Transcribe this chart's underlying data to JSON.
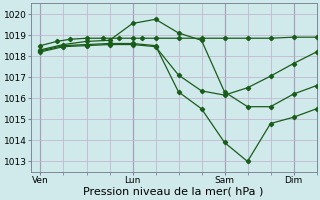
{
  "background_color": "#d0eaec",
  "grid_color": "#c0b0cc",
  "line_color": "#1a5c1a",
  "xlabel": "Pression niveau de la mer( hPa )",
  "xlabel_fontsize": 8,
  "ylim": [
    1012.5,
    1020.5
  ],
  "yticks": [
    1013,
    1014,
    1015,
    1016,
    1017,
    1018,
    1019,
    1020
  ],
  "xtick_labels": [
    "Ven",
    "Lun",
    "Sam",
    "Dim"
  ],
  "xtick_positions": [
    0,
    28,
    56,
    77
  ],
  "vline_positions": [
    0,
    28,
    56,
    77
  ],
  "xlim": [
    -3,
    84
  ],
  "series1_x": [
    0,
    5,
    9,
    14,
    19,
    24,
    28,
    31,
    35,
    42,
    49,
    56,
    63,
    70,
    77,
    84
  ],
  "series1_y": [
    1018.5,
    1018.7,
    1018.8,
    1018.85,
    1018.85,
    1018.85,
    1018.85,
    1018.85,
    1018.85,
    1018.85,
    1018.85,
    1018.85,
    1018.85,
    1018.85,
    1018.9,
    1018.9
  ],
  "series2_x": [
    0,
    7,
    14,
    21,
    28,
    35,
    42,
    49,
    56,
    63,
    70,
    77,
    84
  ],
  "series2_y": [
    1018.3,
    1018.55,
    1018.7,
    1018.75,
    1019.55,
    1019.75,
    1019.1,
    1018.75,
    1016.3,
    1015.6,
    1015.6,
    1016.2,
    1016.6
  ],
  "series3_x": [
    0,
    7,
    14,
    21,
    28,
    35,
    42,
    49,
    56,
    63,
    70,
    77,
    84
  ],
  "series3_y": [
    1018.25,
    1018.5,
    1018.55,
    1018.6,
    1018.6,
    1018.5,
    1016.3,
    1015.5,
    1013.9,
    1013.0,
    1014.8,
    1015.1,
    1015.5
  ],
  "series4_x": [
    0,
    7,
    14,
    21,
    28,
    35,
    42,
    49,
    56,
    63,
    70,
    77,
    84
  ],
  "series4_y": [
    1018.2,
    1018.45,
    1018.5,
    1018.55,
    1018.55,
    1018.45,
    1017.1,
    1016.35,
    1016.15,
    1016.5,
    1017.05,
    1017.65,
    1018.2
  ],
  "marker": "D",
  "markersize": 2.2,
  "linewidth": 0.9
}
